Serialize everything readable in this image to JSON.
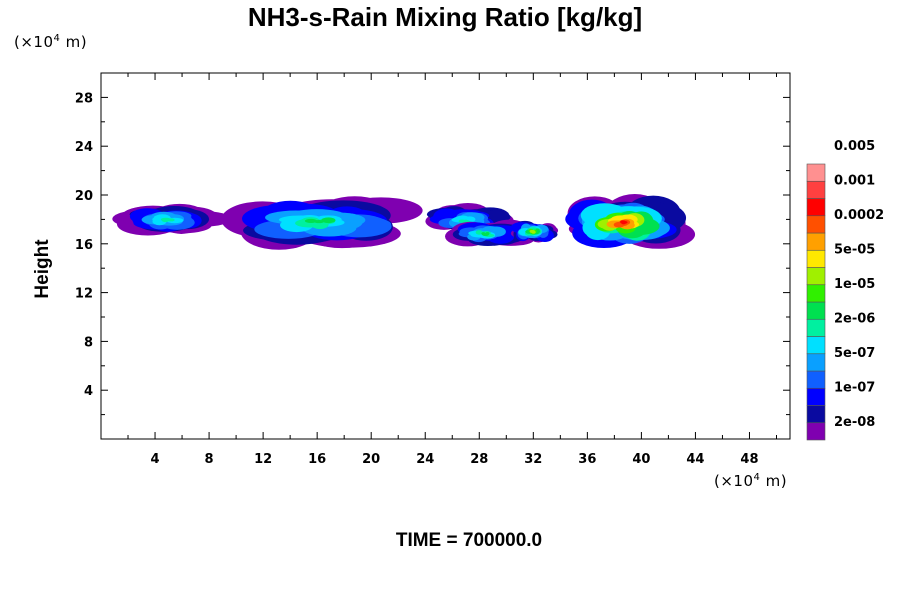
{
  "chart_data": {
    "type": "heatmap",
    "title": "NH3-s-Rain Mixing Ratio [kg/kg]",
    "ylabel": "Height",
    "xlabel": "",
    "x_unit_prefix": "(×10",
    "x_unit_exp": "4",
    "x_unit_suffix": " m)",
    "y_unit_prefix": "(×10",
    "y_unit_exp": "4",
    "y_unit_suffix": " m)",
    "xlim": [
      0,
      51
    ],
    "ylim": [
      0,
      30
    ],
    "x_ticks": [
      4,
      8,
      12,
      16,
      20,
      24,
      28,
      32,
      36,
      40,
      44,
      48
    ],
    "x_tick_labels": [
      "4",
      "8",
      "12",
      "16",
      "20",
      "24",
      "28",
      "32",
      "36",
      "40",
      "44",
      "48"
    ],
    "y_ticks": [
      4,
      8,
      12,
      16,
      20,
      24,
      28
    ],
    "y_tick_labels": [
      "4",
      "8",
      "12",
      "16",
      "20",
      "24",
      "28"
    ],
    "colorbar": {
      "colors": [
        "#7f00b0",
        "#0a0aa0",
        "#0000ff",
        "#1060ff",
        "#0aa0ff",
        "#00e0ff",
        "#00f0a0",
        "#00e050",
        "#30f000",
        "#a0f000",
        "#ffe800",
        "#ffa000",
        "#ff5000",
        "#ff0000",
        "#ff4040",
        "#ff9090"
      ],
      "labels": [
        "2e-08",
        "1e-07",
        "5e-07",
        "2e-06",
        "1e-05",
        "5e-05",
        "0.0002",
        "0.001",
        "0.005"
      ]
    },
    "regions": [
      {
        "x": [
          1.5,
          8.5
        ],
        "y": [
          16.8,
          19.2
        ],
        "peak": 6
      },
      {
        "x": [
          10,
          22.5
        ],
        "y": [
          16.0,
          19.6
        ],
        "peak": 7
      },
      {
        "x": [
          24,
          30
        ],
        "y": [
          16.8,
          19.0
        ],
        "peak": 6
      },
      {
        "x": [
          26,
          31
        ],
        "y": [
          15.8,
          17.8
        ],
        "peak": 7
      },
      {
        "x": [
          30.5,
          33.5
        ],
        "y": [
          16.2,
          17.8
        ],
        "peak": 9
      },
      {
        "x": [
          34.5,
          42.5
        ],
        "y": [
          15.8,
          19.6
        ],
        "peak": 13
      }
    ],
    "time_label": "TIME = 700000.0"
  }
}
